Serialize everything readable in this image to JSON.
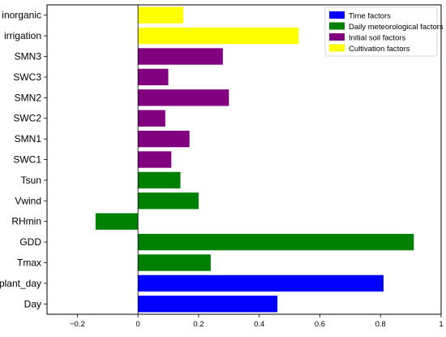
{
  "chart_data": {
    "type": "bar",
    "orientation": "horizontal",
    "title": "",
    "xlabel": "",
    "ylabel": "",
    "xlim": [
      -0.3,
      1.0
    ],
    "x_ticks": [
      -0.2,
      0,
      0.2,
      0.4,
      0.6,
      0.8,
      1
    ],
    "x_tick_labels": [
      "−0.2",
      "0",
      "0.2",
      "0.4",
      "0.6",
      "0.8",
      "1"
    ],
    "grid": false,
    "legend_position": "top-right",
    "groups": [
      {
        "name": "Time factors",
        "color": "#0000ff"
      },
      {
        "name": "Daily meteorological factors",
        "color": "#008000"
      },
      {
        "name": "Initial soil factors",
        "color": "#800080"
      },
      {
        "name": "Cultivation factors",
        "color": "#ffff00"
      }
    ],
    "categories": [
      "inorganic",
      "irrigation",
      "SMN3",
      "SWC3",
      "SMN2",
      "SWC2",
      "SMN1",
      "SWC1",
      "Tsun",
      "Vwind",
      "RHmin",
      "GDD",
      "Tmax",
      "plant_day",
      "Day"
    ],
    "values": [
      0.15,
      0.53,
      0.28,
      0.1,
      0.3,
      0.09,
      0.17,
      0.11,
      0.14,
      0.2,
      -0.14,
      0.91,
      0.24,
      0.81,
      0.46
    ],
    "value_groups": [
      3,
      3,
      2,
      2,
      2,
      2,
      2,
      2,
      1,
      1,
      1,
      1,
      1,
      0,
      0
    ]
  }
}
